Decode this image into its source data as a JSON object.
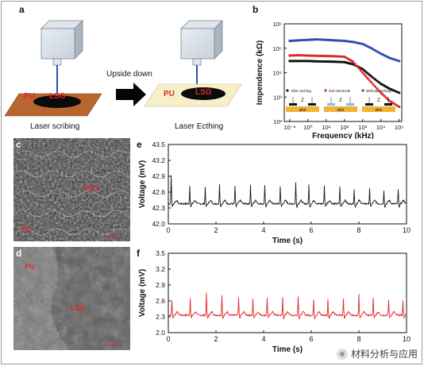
{
  "panels": {
    "a": "a",
    "b": "b",
    "c": "c",
    "d": "d",
    "e": "e",
    "f": "f"
  },
  "schematic": {
    "left_lsg": "LSG",
    "left_pu": "PU",
    "right_lsg": "LSG",
    "right_pu": "PU",
    "arrow_label": "Upside down",
    "caption_left": "Laser scribing",
    "caption_right": "Laser Ecthing"
  },
  "sem": {
    "c_lsg": "LSG",
    "c_pu": "PU",
    "d_pu": "PU",
    "d_lsg": "LSG"
  },
  "colors": {
    "after_etching": "#111111",
    "gel_electrode": "#e0262a",
    "without_etching": "#2f4fb5",
    "voltage_e": "#1a1a1a",
    "voltage_f": "#e0262a",
    "copper": "#b8662f",
    "pu_film": "#f7efc8"
  },
  "watermark": "材料分析与应用",
  "chart_data": [
    {
      "id": "b",
      "type": "scatter",
      "xlabel": "Frequency (kHz)",
      "ylabel": "Impendence (kΩ)",
      "xscale": "log",
      "yscale": "log",
      "xlim": [
        0.05,
        140000
      ],
      "ylim": [
        100,
        1000000
      ],
      "xticks": [
        {
          "v": 0.1,
          "label": "10⁻¹"
        },
        {
          "v": 1,
          "label": "10⁰"
        },
        {
          "v": 10,
          "label": "10¹"
        },
        {
          "v": 100,
          "label": "10²"
        },
        {
          "v": 1000,
          "label": "10³"
        },
        {
          "v": 10000,
          "label": "10⁴"
        },
        {
          "v": 100000,
          "label": "10⁵"
        }
      ],
      "yticks": [
        {
          "v": 100,
          "label": "10²"
        },
        {
          "v": 1000,
          "label": "10³"
        },
        {
          "v": 10000,
          "label": "10⁴"
        },
        {
          "v": 100000,
          "label": "10⁵"
        },
        {
          "v": 1000000,
          "label": "10⁶"
        }
      ],
      "legend_position": "lower-left",
      "series": [
        {
          "name": "After etching",
          "color": "#111111",
          "x": [
            0.1,
            0.3,
            1,
            3,
            10,
            30,
            100,
            300,
            1000,
            3000,
            10000,
            30000,
            100000
          ],
          "y": [
            30000,
            30000,
            30000,
            29000,
            28500,
            28000,
            27000,
            22000,
            14000,
            7000,
            3500,
            2200,
            1500
          ]
        },
        {
          "name": "Gel electrode",
          "color": "#e0262a",
          "x": [
            0.1,
            0.3,
            1,
            3,
            10,
            30,
            100,
            300,
            1000,
            3000,
            10000,
            30000,
            100000
          ],
          "y": [
            50000,
            52000,
            50000,
            49000,
            48000,
            47000,
            45000,
            28000,
            10000,
            4000,
            1500,
            700,
            400
          ]
        },
        {
          "name": "Without etching",
          "color": "#2f4fb5",
          "x": [
            0.1,
            0.3,
            1,
            3,
            10,
            30,
            100,
            300,
            1000,
            3000,
            10000,
            30000,
            100000
          ],
          "y": [
            200000,
            210000,
            220000,
            230000,
            220000,
            210000,
            200000,
            180000,
            150000,
            100000,
            60000,
            40000,
            30000
          ]
        }
      ],
      "inset_labels": [
        "Z",
        "Z",
        "Z"
      ],
      "inset_skin": "skin"
    },
    {
      "id": "e",
      "type": "line",
      "xlabel": "Time (s)",
      "ylabel": "Voltage (mV)",
      "xlim": [
        0,
        10
      ],
      "ylim": [
        42.0,
        43.5
      ],
      "xticks": [
        0,
        2,
        4,
        6,
        8,
        10
      ],
      "yticks": [
        42.0,
        42.3,
        42.6,
        42.9,
        43.2,
        43.5
      ],
      "ytick_labels": [
        "42.0",
        "42.3",
        "42.6",
        "42.9",
        "43.2",
        "43.5"
      ],
      "baseline": 42.38,
      "peaks": [
        {
          "t": 0.12,
          "v": 42.93
        },
        {
          "t": 0.9,
          "v": 42.72
        },
        {
          "t": 1.55,
          "v": 42.7
        },
        {
          "t": 2.15,
          "v": 42.76
        },
        {
          "t": 2.8,
          "v": 42.72
        },
        {
          "t": 3.45,
          "v": 42.74
        },
        {
          "t": 4.05,
          "v": 42.75
        },
        {
          "t": 4.7,
          "v": 42.72
        },
        {
          "t": 5.35,
          "v": 42.78
        },
        {
          "t": 5.9,
          "v": 42.74
        },
        {
          "t": 6.55,
          "v": 42.73
        },
        {
          "t": 7.2,
          "v": 42.72
        },
        {
          "t": 7.8,
          "v": 42.66
        },
        {
          "t": 8.45,
          "v": 42.68
        },
        {
          "t": 9.05,
          "v": 42.64
        },
        {
          "t": 9.65,
          "v": 42.65
        }
      ]
    },
    {
      "id": "f",
      "type": "line",
      "xlabel": "Time (s)",
      "ylabel": "Voltage (mV)",
      "xlim": [
        0,
        10
      ],
      "ylim": [
        2.0,
        3.5
      ],
      "xticks": [
        0,
        2,
        4,
        6,
        8,
        10
      ],
      "yticks": [
        2.0,
        2.3,
        2.6,
        2.9,
        3.2,
        3.5
      ],
      "ytick_labels": [
        "2.0",
        "2.3",
        "2.6",
        "2.9",
        "3.2",
        "3.5"
      ],
      "baseline": 2.33,
      "peaks": [
        {
          "t": 0.15,
          "v": 2.62
        },
        {
          "t": 0.92,
          "v": 2.68
        },
        {
          "t": 1.6,
          "v": 2.76
        },
        {
          "t": 2.25,
          "v": 2.72
        },
        {
          "t": 2.95,
          "v": 2.65
        },
        {
          "t": 3.55,
          "v": 2.63
        },
        {
          "t": 4.15,
          "v": 2.66
        },
        {
          "t": 4.8,
          "v": 2.67
        },
        {
          "t": 5.45,
          "v": 2.7
        },
        {
          "t": 6.1,
          "v": 2.64
        },
        {
          "t": 6.7,
          "v": 2.63
        },
        {
          "t": 7.35,
          "v": 2.66
        },
        {
          "t": 8.0,
          "v": 2.72
        },
        {
          "t": 8.6,
          "v": 2.66
        },
        {
          "t": 9.25,
          "v": 2.62
        },
        {
          "t": 9.85,
          "v": 2.6
        }
      ]
    }
  ]
}
